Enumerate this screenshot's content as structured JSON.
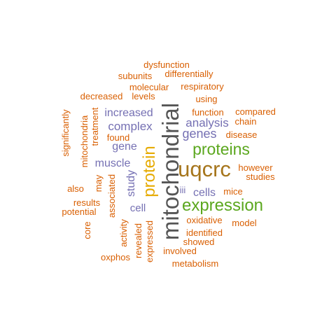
{
  "colors": {
    "orange": "#D95F02",
    "purple": "#7570B3",
    "green": "#5BA71E",
    "gold": "#E6AB02",
    "brown": "#A6761D",
    "gray": "#555555"
  },
  "words": [
    {
      "text": "mitochondrial",
      "color": "gray"
    },
    {
      "text": "uqcrc",
      "color": "brown"
    },
    {
      "text": "expression",
      "color": "green"
    },
    {
      "text": "proteins",
      "color": "green"
    },
    {
      "text": "protein",
      "color": "gold"
    },
    {
      "text": "genes",
      "color": "purple"
    },
    {
      "text": "analysis",
      "color": "purple"
    },
    {
      "text": "complex",
      "color": "purple"
    },
    {
      "text": "increased",
      "color": "purple"
    },
    {
      "text": "muscle",
      "color": "purple"
    },
    {
      "text": "gene",
      "color": "purple"
    },
    {
      "text": "cells",
      "color": "purple"
    },
    {
      "text": "study",
      "color": "purple"
    },
    {
      "text": "cell",
      "color": "purple"
    },
    {
      "text": "dysfunction",
      "color": "orange"
    },
    {
      "text": "subunits",
      "color": "orange"
    },
    {
      "text": "differentially",
      "color": "orange"
    },
    {
      "text": "molecular",
      "color": "orange"
    },
    {
      "text": "respiratory",
      "color": "orange"
    },
    {
      "text": "decreased",
      "color": "orange"
    },
    {
      "text": "levels",
      "color": "orange"
    },
    {
      "text": "using",
      "color": "orange"
    },
    {
      "text": "function",
      "color": "orange"
    },
    {
      "text": "compared",
      "color": "orange"
    },
    {
      "text": "chain",
      "color": "orange"
    },
    {
      "text": "disease",
      "color": "orange"
    },
    {
      "text": "found",
      "color": "orange"
    },
    {
      "text": "however",
      "color": "orange"
    },
    {
      "text": "studies",
      "color": "orange"
    },
    {
      "text": "iii",
      "color": "purple"
    },
    {
      "text": "mice",
      "color": "orange"
    },
    {
      "text": "also",
      "color": "orange"
    },
    {
      "text": "results",
      "color": "orange"
    },
    {
      "text": "potential",
      "color": "orange"
    },
    {
      "text": "oxidative",
      "color": "orange"
    },
    {
      "text": "model",
      "color": "orange"
    },
    {
      "text": "identified",
      "color": "orange"
    },
    {
      "text": "showed",
      "color": "orange"
    },
    {
      "text": "involved",
      "color": "orange"
    },
    {
      "text": "metabolism",
      "color": "orange"
    },
    {
      "text": "oxphos",
      "color": "orange"
    },
    {
      "text": "significantly",
      "color": "orange"
    },
    {
      "text": "mitochondria",
      "color": "orange"
    },
    {
      "text": "treatment",
      "color": "orange"
    },
    {
      "text": "may",
      "color": "orange"
    },
    {
      "text": "associated",
      "color": "orange"
    },
    {
      "text": "core",
      "color": "orange"
    },
    {
      "text": "activity",
      "color": "orange"
    },
    {
      "text": "revealed",
      "color": "orange"
    },
    {
      "text": "expressed",
      "color": "orange"
    }
  ]
}
